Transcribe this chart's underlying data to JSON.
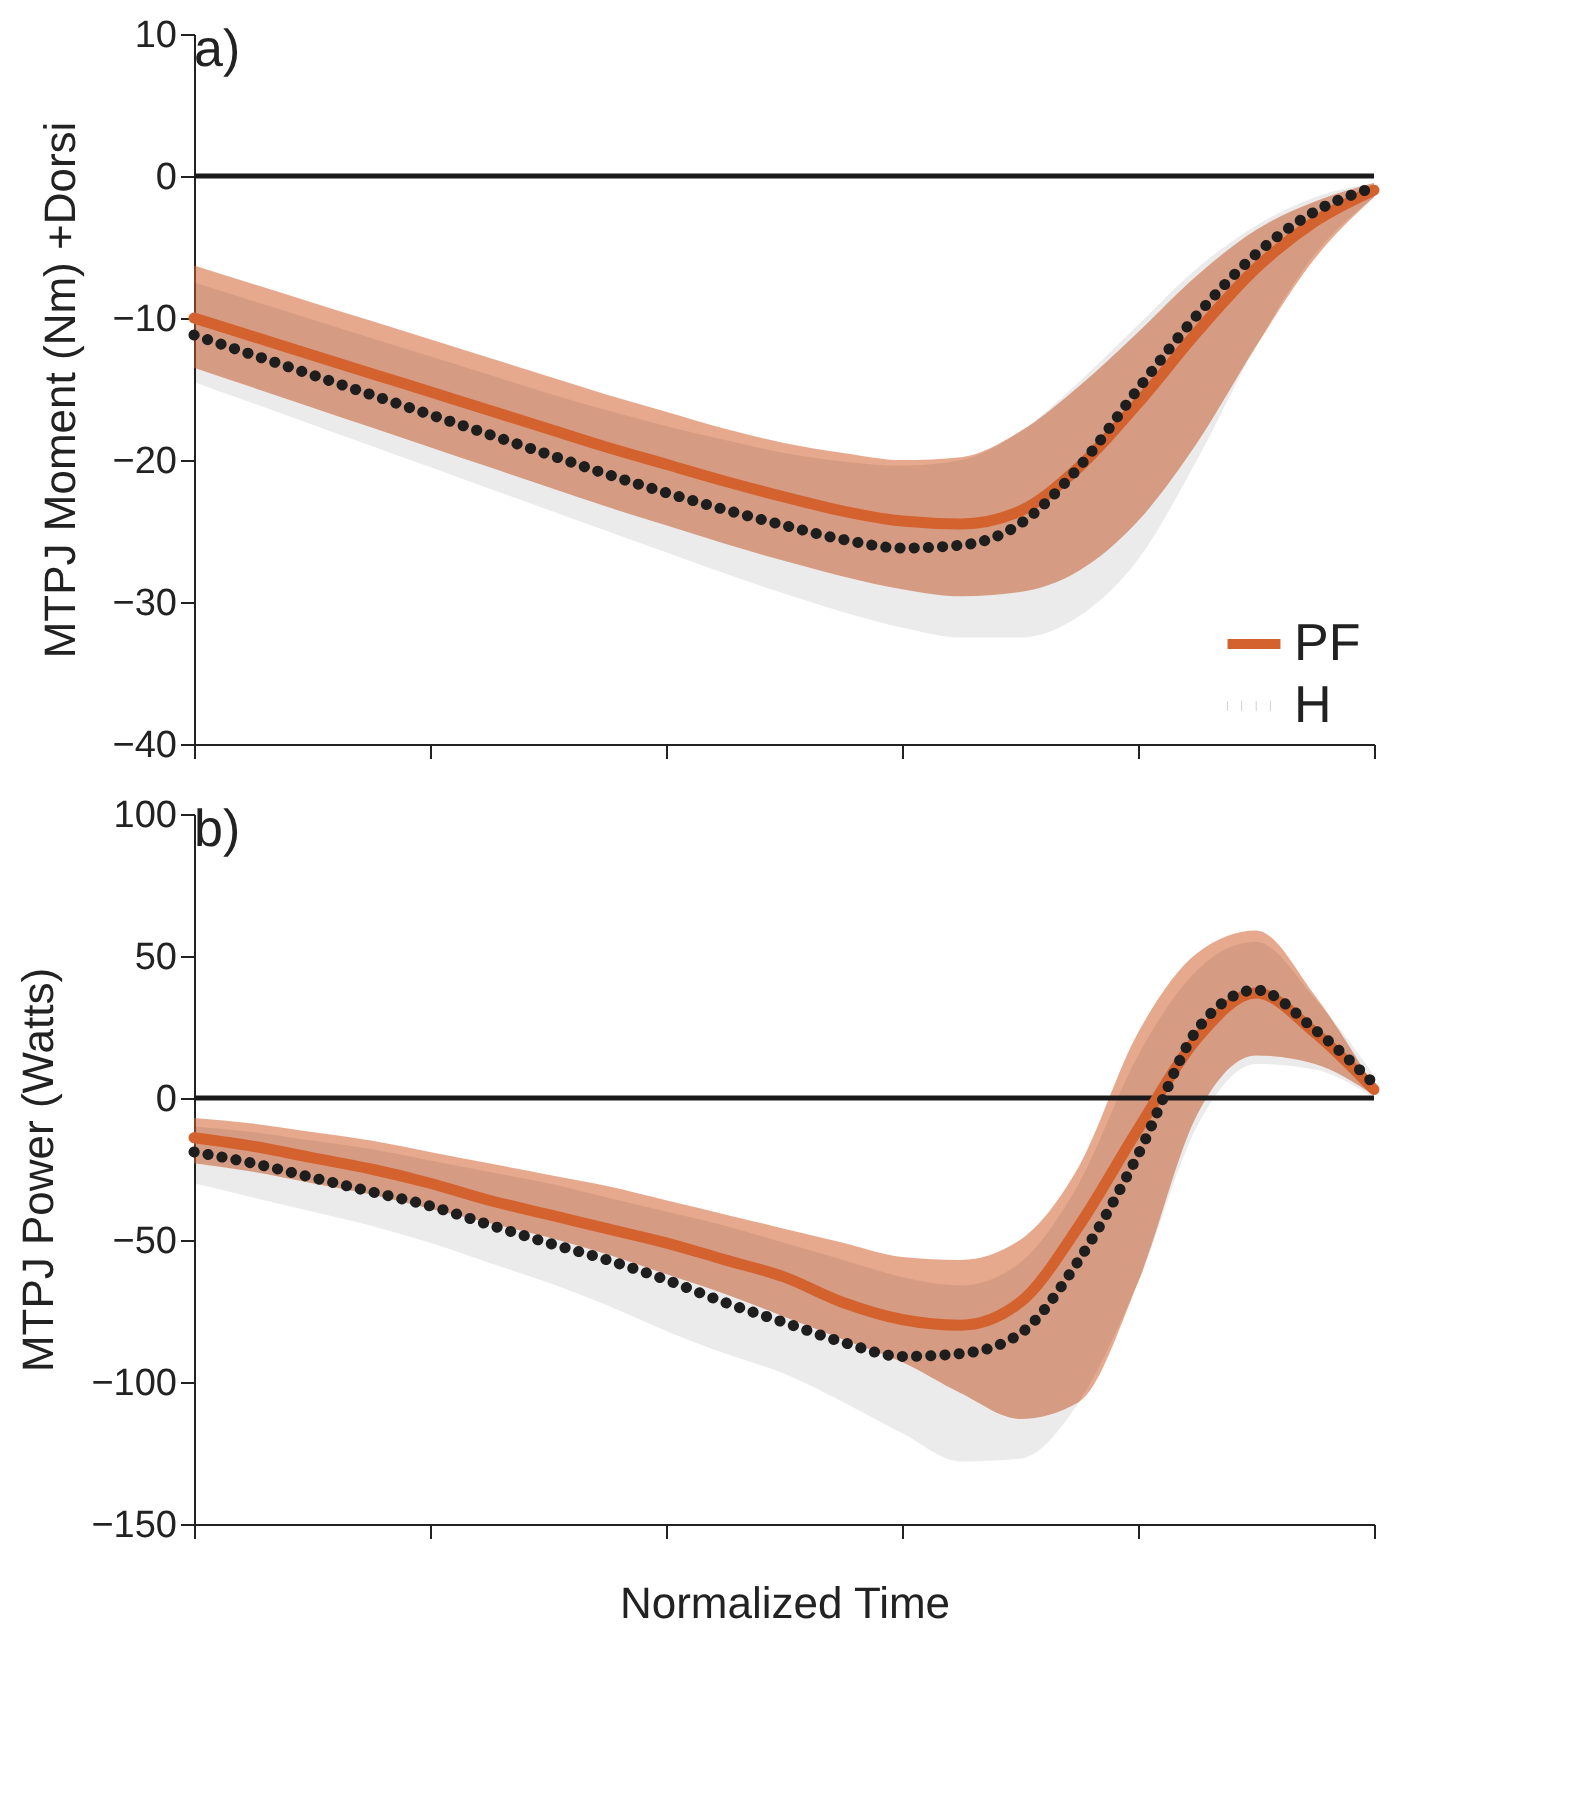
{
  "chart_data": [
    {
      "type": "line",
      "title": "a)",
      "ylabel": "MTPJ Moment (Nm) +Dorsi",
      "categories": [
        null,
        null,
        null,
        null,
        null,
        null,
        null,
        null,
        null,
        null,
        null,
        null,
        null,
        null,
        null,
        null,
        null,
        null,
        null,
        null,
        null
      ],
      "ylim": [
        -40,
        10
      ],
      "yticks": [
        -40,
        -30,
        -20,
        -10,
        0,
        10
      ],
      "tick_labels": "y",
      "grid": false,
      "legend": "bottom right",
      "ref_lines": [
        {
          "axis": "y",
          "value": 0,
          "color": "#1a1a1a"
        }
      ],
      "series": [
        {
          "name": "PF",
          "color": "#d4622f",
          "line_style": "solid",
          "values": [
            -10,
            -11.3,
            -12.6,
            -13.9,
            -15.2,
            -16.5,
            -17.8,
            -19.1,
            -20.3,
            -21.5,
            -22.6,
            -23.6,
            -24.3,
            -24.5,
            -23.6,
            -20.5,
            -16,
            -11,
            -6.5,
            -3.2,
            -1
          ],
          "upper": [
            -6.3,
            -7.6,
            -8.9,
            -10.2,
            -11.5,
            -12.8,
            -14.1,
            -15.4,
            -16.6,
            -17.8,
            -18.8,
            -19.5,
            -20,
            -19.8,
            -18,
            -14.8,
            -11,
            -7,
            -3.8,
            -1.8,
            -0.5
          ],
          "lower": [
            -13.5,
            -14.9,
            -16.3,
            -17.7,
            -19.1,
            -20.5,
            -21.9,
            -23.3,
            -24.6,
            -25.9,
            -27.1,
            -28.2,
            -29.1,
            -29.6,
            -29.3,
            -27.8,
            -24.3,
            -18.8,
            -12,
            -5.8,
            -1.5
          ]
        },
        {
          "name": "H",
          "color": "#1e1e1e",
          "line_style": "dotted",
          "values": [
            -11.2,
            -12.6,
            -14,
            -15.4,
            -16.8,
            -18.2,
            -19.6,
            -21,
            -22.3,
            -23.5,
            -24.6,
            -25.6,
            -26.2,
            -26,
            -24.5,
            -20.5,
            -15,
            -9.8,
            -5.5,
            -2.5,
            -0.8
          ],
          "upper": [
            -7.5,
            -8.8,
            -10.1,
            -11.4,
            -12.7,
            -14,
            -15.3,
            -16.5,
            -17.6,
            -18.6,
            -19.5,
            -20.1,
            -20.4,
            -20,
            -18,
            -14.5,
            -10.5,
            -6.5,
            -3.5,
            -1.5,
            -0.5
          ],
          "lower": [
            -14.5,
            -16,
            -17.5,
            -19,
            -20.5,
            -22,
            -23.5,
            -25,
            -26.5,
            -28,
            -29.4,
            -30.7,
            -31.8,
            -32.5,
            -32.5,
            -31,
            -27,
            -20,
            -12,
            -5.5,
            -1.5
          ]
        }
      ]
    },
    {
      "type": "line",
      "title": "b)",
      "ylabel": "MTPJ Power  (Watts)",
      "xlabel": "Normalized Time",
      "categories": [
        null,
        null,
        null,
        null,
        null,
        null,
        null,
        null,
        null,
        null,
        null,
        null,
        null,
        null,
        null,
        null,
        null,
        null,
        null,
        null,
        null
      ],
      "ylim": [
        -150,
        100
      ],
      "yticks": [
        -150,
        -100,
        -50,
        0,
        50,
        100
      ],
      "tick_labels": "y",
      "grid": false,
      "ref_lines": [
        {
          "axis": "y",
          "value": 0,
          "color": "#1a1a1a"
        }
      ],
      "series": [
        {
          "color": "#d4622f",
          "line_style": "solid",
          "values": [
            -14,
            -17,
            -21,
            -25,
            -30,
            -36,
            -41,
            -46,
            -51,
            -57,
            -63,
            -72,
            -78,
            -80,
            -72,
            -45,
            -11,
            21,
            37,
            23,
            3
          ],
          "upper": [
            -7,
            -9,
            -12,
            -15,
            -19,
            -23,
            -27,
            -31,
            -36,
            -41,
            -46,
            -51,
            -56,
            -57,
            -50,
            -24,
            23,
            51,
            59,
            36,
            4
          ],
          "lower": [
            -23,
            -26,
            -30,
            -34,
            -39,
            -44,
            -49,
            -55,
            -62,
            -69,
            -77,
            -85,
            -93,
            -104,
            -113,
            -107,
            -65,
            -6,
            15,
            12,
            1
          ]
        },
        {
          "color": "#1e1e1e",
          "line_style": "dotted",
          "values": [
            -19,
            -23,
            -28,
            -33,
            -38,
            -44.6,
            -51,
            -57,
            -64,
            -72,
            -79,
            -86,
            -91,
            -90,
            -83,
            -57,
            -20,
            24,
            38,
            24,
            5
          ],
          "upper": [
            -10,
            -12,
            -15,
            -18,
            -22,
            -26,
            -30,
            -35,
            -40,
            -45,
            -51,
            -57,
            -63,
            -66,
            -58,
            -30,
            15,
            45,
            55,
            35,
            8
          ],
          "lower": [
            -30,
            -35,
            -40,
            -45,
            -51,
            -58,
            -65,
            -73,
            -82,
            -90,
            -97,
            -107,
            -118,
            -128,
            -127,
            -107,
            -65,
            -10,
            12,
            10,
            0
          ]
        }
      ]
    }
  ]
}
